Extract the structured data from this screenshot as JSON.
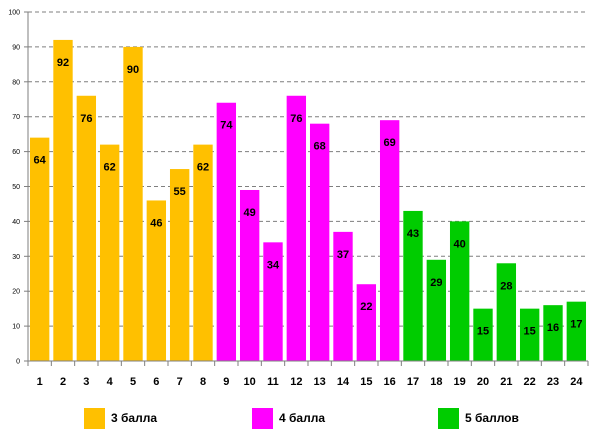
{
  "chart_data": {
    "type": "bar",
    "title": "",
    "xlabel": "",
    "ylabel": "",
    "ylim": [
      0,
      100
    ],
    "ytick_step": 10,
    "grid": true,
    "categories": [
      "1",
      "2",
      "3",
      "4",
      "5",
      "6",
      "7",
      "8",
      "9",
      "10",
      "11",
      "12",
      "13",
      "14",
      "15",
      "16",
      "17",
      "18",
      "19",
      "20",
      "21",
      "22",
      "23",
      "24"
    ],
    "values": [
      64,
      92,
      76,
      62,
      90,
      46,
      55,
      62,
      74,
      49,
      34,
      76,
      68,
      37,
      22,
      69,
      43,
      29,
      40,
      15,
      28,
      15,
      16,
      17
    ],
    "groups": [
      0,
      0,
      0,
      0,
      0,
      0,
      0,
      0,
      1,
      1,
      1,
      1,
      1,
      1,
      1,
      1,
      2,
      2,
      2,
      2,
      2,
      2,
      2,
      2
    ],
    "series": [
      {
        "name": "3 балла",
        "color": "#FFC000"
      },
      {
        "name": "4 балла",
        "color": "#FF00FF"
      },
      {
        "name": "5 баллов",
        "color": "#00CC00"
      }
    ],
    "legend_position": "bottom"
  }
}
